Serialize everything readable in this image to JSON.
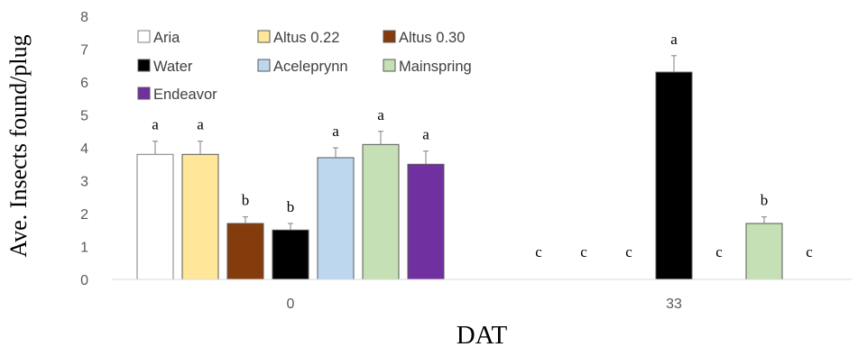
{
  "chart_data": {
    "type": "bar",
    "xlabel": "DAT",
    "ylabel": "Ave. Insects found/plug",
    "ylim": [
      0,
      8
    ],
    "yticks": [
      0,
      1,
      2,
      3,
      4,
      5,
      6,
      7,
      8
    ],
    "categories": [
      "0",
      "33"
    ],
    "grid": false,
    "legend_position": "top-left",
    "series": [
      {
        "name": "Aria",
        "color": "#ffffff",
        "values": [
          3.8,
          0
        ],
        "errors": [
          0.4,
          0
        ],
        "letters": [
          "a",
          "c"
        ]
      },
      {
        "name": "Altus 0.22",
        "color": "#ffe699",
        "values": [
          3.8,
          0
        ],
        "errors": [
          0.4,
          0
        ],
        "letters": [
          "a",
          "c"
        ]
      },
      {
        "name": "Altus 0.30",
        "color": "#843c0c",
        "values": [
          1.7,
          0
        ],
        "errors": [
          0.2,
          0
        ],
        "letters": [
          "b",
          "c"
        ]
      },
      {
        "name": "Water",
        "color": "#000000",
        "values": [
          1.5,
          6.3
        ],
        "errors": [
          0.2,
          0.5
        ],
        "letters": [
          "b",
          "a"
        ]
      },
      {
        "name": "Aceleprynn",
        "color": "#bdd7ee",
        "values": [
          3.7,
          0
        ],
        "errors": [
          0.3,
          0
        ],
        "letters": [
          "a",
          "c"
        ]
      },
      {
        "name": "Mainspring",
        "color": "#c5e0b4",
        "values": [
          4.1,
          1.7
        ],
        "errors": [
          0.4,
          0.2
        ],
        "letters": [
          "a",
          "b"
        ]
      },
      {
        "name": "Endeavor",
        "color": "#7030a0",
        "values": [
          3.5,
          0
        ],
        "errors": [
          0.4,
          0
        ],
        "letters": [
          "a",
          "c"
        ]
      }
    ]
  }
}
